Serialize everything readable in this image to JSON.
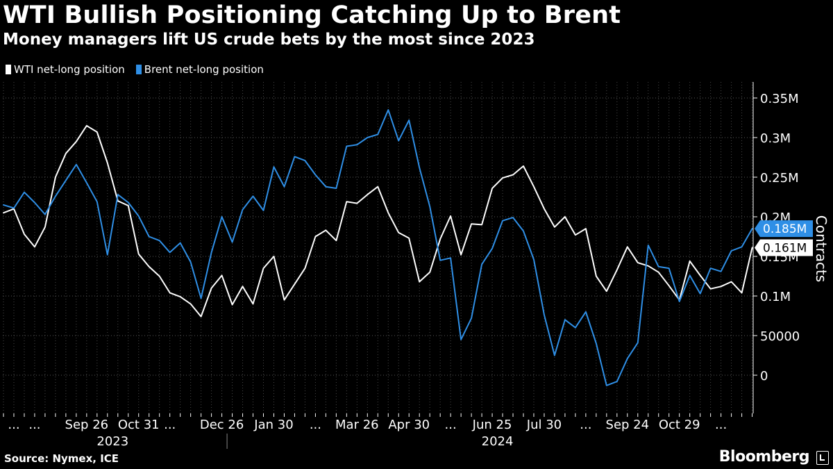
{
  "header": {
    "title": "WTI Bullish Positioning Catching Up to Brent",
    "subtitle": "Money managers lift US crude bets by the most since 2023"
  },
  "legend": {
    "items": [
      {
        "label": "WTI net-long position",
        "color": "#ffffff"
      },
      {
        "label": "Brent net-long position",
        "color": "#2f8fe6"
      }
    ]
  },
  "footer": {
    "source": "Source: Nymex, ICE",
    "brand": "Bloomberg"
  },
  "chart_data": {
    "type": "line",
    "title": "WTI Bullish Positioning Catching Up to Brent",
    "subtitle": "Money managers lift US crude bets by the most since 2023",
    "ylabel": "Contracts",
    "ylim": [
      -50000,
      370000
    ],
    "y_ticks": [
      {
        "value": 0,
        "label": "0"
      },
      {
        "value": 50000,
        "label": "50000"
      },
      {
        "value": 100000,
        "label": "0.1M"
      },
      {
        "value": 150000,
        "label": "0.15M"
      },
      {
        "value": 200000,
        "label": "0.2M"
      },
      {
        "value": 250000,
        "label": "0.25M"
      },
      {
        "value": 300000,
        "label": "0.3M"
      },
      {
        "value": 350000,
        "label": "0.35M"
      }
    ],
    "x_tick_labels": [
      {
        "index": 1,
        "label": "..."
      },
      {
        "index": 3,
        "label": "..."
      },
      {
        "index": 8,
        "label": "Sep 26"
      },
      {
        "index": 13,
        "label": "Oct 31"
      },
      {
        "index": 16,
        "label": "..."
      },
      {
        "index": 21,
        "label": "Dec 26"
      },
      {
        "index": 26,
        "label": "Jan 30"
      },
      {
        "index": 30,
        "label": "..."
      },
      {
        "index": 34,
        "label": "Mar 26"
      },
      {
        "index": 39,
        "label": "Apr 30"
      },
      {
        "index": 43,
        "label": "..."
      },
      {
        "index": 47,
        "label": "Jun 25"
      },
      {
        "index": 52,
        "label": "Jul 30"
      },
      {
        "index": 56,
        "label": "..."
      },
      {
        "index": 60,
        "label": "Sep 24"
      },
      {
        "index": 65,
        "label": "Oct 29"
      },
      {
        "index": 69,
        "label": "..."
      }
    ],
    "year_labels": [
      {
        "index": 10.5,
        "label": "2023"
      },
      {
        "index": 47.5,
        "label": "2024"
      }
    ],
    "year_divider_index": 21.5,
    "series": [
      {
        "name": "WTI net-long position",
        "color": "#ffffff",
        "end_label": "0.161M",
        "values": [
          205000,
          210000,
          178000,
          162000,
          187000,
          250000,
          280000,
          295000,
          315000,
          307000,
          268000,
          220000,
          214000,
          153000,
          137000,
          125000,
          104000,
          99000,
          90000,
          74000,
          110000,
          126000,
          89000,
          112000,
          90000,
          135000,
          150000,
          95000,
          115000,
          135000,
          175000,
          183000,
          170000,
          219000,
          217000,
          228000,
          238000,
          205000,
          180000,
          173000,
          118000,
          130000,
          172000,
          201000,
          152000,
          191000,
          190000,
          236000,
          249000,
          253000,
          264000,
          238000,
          210000,
          187000,
          200000,
          177000,
          185000,
          125000,
          106000,
          133000,
          162000,
          142000,
          138000,
          130000,
          113000,
          95000,
          144000,
          126000,
          109000,
          112000,
          118000,
          104000,
          161000
        ]
      },
      {
        "name": "Brent net-long position",
        "color": "#2f8fe6",
        "end_label": "0.185M",
        "values": [
          215000,
          211000,
          231000,
          218000,
          203000,
          226000,
          246000,
          266000,
          243000,
          219000,
          152000,
          228000,
          218000,
          201000,
          175000,
          170000,
          155000,
          167000,
          143000,
          97000,
          155000,
          200000,
          168000,
          209000,
          226000,
          208000,
          263000,
          238000,
          276000,
          271000,
          253000,
          238000,
          236000,
          289000,
          291000,
          300000,
          304000,
          335000,
          296000,
          322000,
          262000,
          213000,
          145000,
          148000,
          45000,
          72000,
          140000,
          160000,
          195000,
          199000,
          182000,
          146000,
          76000,
          25000,
          70000,
          60000,
          80000,
          40000,
          -13000,
          -8000,
          21000,
          41000,
          164000,
          137000,
          135000,
          93000,
          126000,
          103000,
          135000,
          131000,
          157000,
          162000,
          185000
        ]
      }
    ]
  }
}
